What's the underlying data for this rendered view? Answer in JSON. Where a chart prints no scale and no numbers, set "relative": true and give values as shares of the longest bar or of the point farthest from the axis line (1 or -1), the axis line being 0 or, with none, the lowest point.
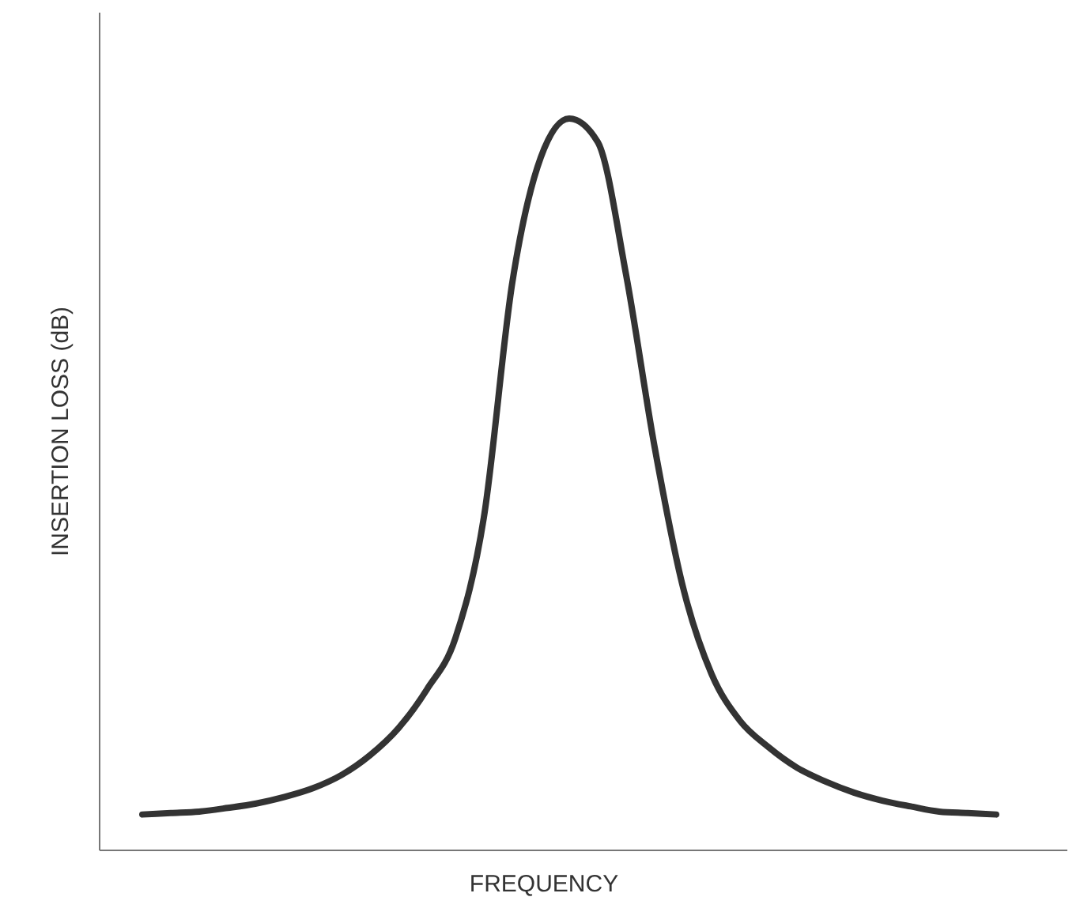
{
  "chart_data": {
    "type": "line",
    "relative": true,
    "xlabel": "FREQUENCY",
    "ylabel": "INSERTION LOSS (dB)",
    "categories": [
      null,
      null,
      null,
      null,
      null,
      null,
      null,
      null,
      null,
      null,
      null,
      null,
      null,
      null,
      null,
      null,
      null,
      null,
      null,
      null,
      null,
      null,
      null,
      null,
      null,
      null,
      null,
      null,
      null,
      null,
      null
    ],
    "series": [
      {
        "color": "#333333",
        "values": [
          0.049,
          0.051,
          0.053,
          0.058,
          0.064,
          0.073,
          0.085,
          0.103,
          0.13,
          0.167,
          0.22,
          0.29,
          0.455,
          0.776,
          0.947,
          1,
          0.968,
          0.786,
          0.551,
          0.359,
          0.241,
          0.177,
          0.141,
          0.113,
          0.094,
          0.079,
          0.068,
          0.06,
          0.053,
          0.051,
          0.049
        ]
      }
    ],
    "marker": "none",
    "line_style": "solid"
  }
}
